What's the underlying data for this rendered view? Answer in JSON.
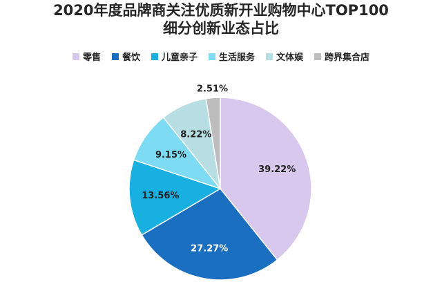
{
  "title_line1": "2020年度品牌商关注优质新开业购物中心TOP100",
  "title_line2": "细分创新业态占比",
  "chart_data": {
    "type": "pie",
    "title": "2020年度品牌商关注优质新开业购物中心TOP100 细分创新业态占比",
    "legend_position": "top",
    "start_angle": "12 o'clock, clockwise",
    "slices": [
      {
        "name": "零售",
        "value": 39.22,
        "label": "39.22%",
        "color": "#D9C8EE"
      },
      {
        "name": "餐饮",
        "value": 27.27,
        "label": "27.27%",
        "color": "#1A6FC0"
      },
      {
        "name": "儿童亲子",
        "value": 13.56,
        "label": "13.56%",
        "color": "#18B0E0"
      },
      {
        "name": "生活服务",
        "value": 9.15,
        "label": "9.15%",
        "color": "#7DDCF4"
      },
      {
        "name": "文体娱",
        "value": 8.22,
        "label": "8.22%",
        "color": "#B7DFE3"
      },
      {
        "name": "跨界集合店",
        "value": 2.51,
        "label": "2.51%",
        "color": "#BDBDBD"
      }
    ]
  }
}
